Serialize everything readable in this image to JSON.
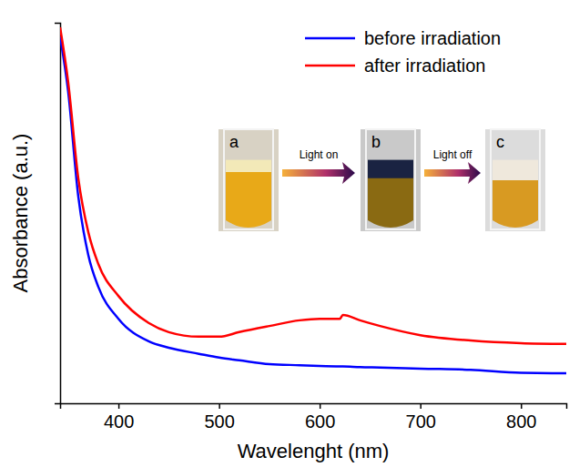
{
  "chart_data": {
    "type": "line",
    "x_label": "Wavelenght (nm)",
    "y_label": "Absorbance (a.u.)",
    "x": [
      342,
      350,
      360,
      370,
      380,
      400,
      430,
      450,
      480,
      500,
      520,
      550,
      580,
      600,
      620,
      623,
      640,
      660,
      700,
      750,
      800,
      845
    ],
    "series": [
      {
        "name": "before irradiation",
        "color": "#0000ff",
        "values": [
          0.964,
          0.82,
          0.545,
          0.39,
          0.306,
          0.222,
          0.163,
          0.146,
          0.13,
          0.12,
          0.113,
          0.103,
          0.1,
          0.098,
          0.097,
          0.097,
          0.095,
          0.094,
          0.091,
          0.088,
          0.08,
          0.079
        ]
      },
      {
        "name": "after irradiation",
        "color": "#ff0000",
        "values": [
          0.988,
          0.845,
          0.593,
          0.45,
          0.366,
          0.282,
          0.211,
          0.187,
          0.175,
          0.175,
          0.187,
          0.203,
          0.218,
          0.222,
          0.222,
          0.232,
          0.218,
          0.203,
          0.179,
          0.165,
          0.158,
          0.156
        ]
      }
    ],
    "xlim": [
      342,
      845
    ],
    "xticks": [
      400,
      500,
      600,
      700,
      800
    ],
    "ylim": [
      0,
      1
    ],
    "tick_labels": "x",
    "legend": "upper right",
    "annotations": [
      "a",
      "b",
      "c",
      "Light on",
      "Light off"
    ]
  }
}
